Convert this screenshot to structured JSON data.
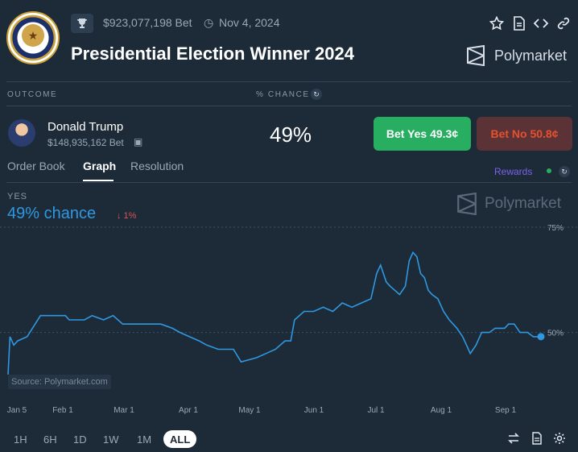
{
  "header": {
    "volume": "$923,077,198 Bet",
    "date": "Nov 4, 2024",
    "title": "Presidential Election Winner 2024",
    "brand": "Polymarket",
    "seal_text": "SEAL OF THE PRESIDENT OF THE UNITED STATES"
  },
  "columns": {
    "outcome": "OUTCOME",
    "chance": "% CHANCE"
  },
  "candidate": {
    "name": "Donald Trump",
    "volume": "$148,935,162 Bet",
    "percent": "49%",
    "bet_yes": "Bet Yes 49.3¢",
    "bet_no": "Bet No 50.8¢"
  },
  "tabs": [
    {
      "label": "Order Book",
      "active": false
    },
    {
      "label": "Graph",
      "active": true
    },
    {
      "label": "Resolution",
      "active": false
    }
  ],
  "rewards_label": "Rewards",
  "graph": {
    "yes_label": "YES",
    "chance_text": "49% chance",
    "delta_text": "↓ 1%",
    "watermark": "Polymarket",
    "source": "Source: Polymarket.com"
  },
  "ranges": [
    "1H",
    "6H",
    "1D",
    "1W",
    "1M",
    "ALL"
  ],
  "active_range": "ALL",
  "colors": {
    "line": "#2f98e0",
    "yes_button": "#27ae60",
    "no_text": "#e4512d",
    "rewards": "#7b62e8"
  },
  "chart_data": {
    "type": "line",
    "x_tick_labels": [
      "Jan 5",
      "Feb 1",
      "Mar 1",
      "Apr 1",
      "May 1",
      "Jun 1",
      "Jul 1",
      "Aug 1",
      "Sep 1"
    ],
    "y_tick_labels": [
      "75%",
      "50%"
    ],
    "ylim": [
      35,
      75
    ],
    "series": [
      {
        "values": [
          [
            0,
            40
          ],
          [
            1,
            49
          ],
          [
            3,
            47
          ],
          [
            5,
            48
          ],
          [
            10,
            49
          ],
          [
            17,
            54
          ],
          [
            30,
            54
          ],
          [
            32,
            53
          ],
          [
            40,
            53
          ],
          [
            44,
            54
          ],
          [
            50,
            53
          ],
          [
            55,
            54
          ],
          [
            60,
            52
          ],
          [
            80,
            52
          ],
          [
            86,
            51
          ],
          [
            90,
            50
          ],
          [
            100,
            48
          ],
          [
            104,
            47
          ],
          [
            110,
            46
          ],
          [
            118,
            46
          ],
          [
            122,
            43
          ],
          [
            130,
            44
          ],
          [
            135,
            45
          ],
          [
            140,
            46
          ],
          [
            145,
            48
          ],
          [
            148,
            48
          ],
          [
            150,
            53
          ],
          [
            155,
            55
          ],
          [
            160,
            55
          ],
          [
            165,
            56
          ],
          [
            170,
            55
          ],
          [
            175,
            57
          ],
          [
            180,
            56
          ],
          [
            185,
            57
          ],
          [
            190,
            58
          ],
          [
            193,
            64
          ],
          [
            195,
            66
          ],
          [
            198,
            62
          ],
          [
            200,
            61
          ],
          [
            205,
            59
          ],
          [
            208,
            61
          ],
          [
            210,
            67
          ],
          [
            212,
            69
          ],
          [
            214,
            68
          ],
          [
            216,
            64
          ],
          [
            218,
            63
          ],
          [
            220,
            60
          ],
          [
            222,
            59
          ],
          [
            225,
            58
          ],
          [
            228,
            55
          ],
          [
            231,
            53
          ],
          [
            235,
            51
          ],
          [
            238,
            49
          ],
          [
            240,
            47
          ],
          [
            242,
            45
          ],
          [
            245,
            47
          ],
          [
            248,
            50
          ],
          [
            252,
            50
          ],
          [
            255,
            51
          ],
          [
            260,
            51
          ],
          [
            262,
            52
          ],
          [
            265,
            52
          ],
          [
            268,
            50
          ],
          [
            272,
            50
          ],
          [
            275,
            49
          ],
          [
            279,
            49
          ]
        ]
      }
    ],
    "current_value": 49,
    "grid": "horizontal dashed"
  }
}
